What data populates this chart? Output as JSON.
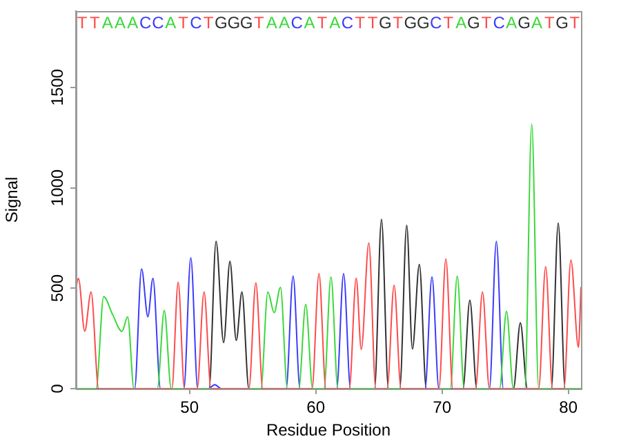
{
  "chart_data": {
    "type": "line",
    "xlabel": "Residue Position",
    "ylabel": "Signal",
    "xlim": [
      41,
      81
    ],
    "xticks": [
      50,
      60,
      70,
      80
    ],
    "ylim": [
      0,
      1880
    ],
    "yticks": [
      0,
      500,
      1000,
      1500
    ],
    "marker": "none",
    "legend": false,
    "series": [
      {
        "color": "#ff4a4a",
        "x": [
          41,
          41.2,
          41.7,
          42.2,
          42.8,
          48.6,
          49.1,
          49.6,
          50.6,
          51.15,
          51.7,
          54.7,
          55.25,
          55.8,
          59.7,
          60.25,
          60.8,
          62.65,
          63.2,
          63.6,
          64.2,
          64.75,
          65.65,
          66.2,
          66.75,
          69.75,
          70.3,
          70.85,
          72.65,
          73.2,
          73.75,
          77.65,
          78.2,
          78.75,
          79.65,
          80.2,
          80.8,
          81
        ],
        "values": [
          500,
          549,
          286,
          481,
          0,
          0,
          530,
          0,
          0,
          481,
          0,
          0,
          527,
          0,
          0,
          573,
          0,
          0,
          550,
          195,
          726,
          0,
          0,
          515,
          0,
          0,
          646,
          0,
          0,
          481,
          0,
          0,
          607,
          0,
          0,
          641,
          206,
          506
        ]
      },
      {
        "color": "#3ad83a",
        "x": [
          41,
          42.6,
          43.2,
          43.9,
          44.65,
          45.1,
          45.6,
          47.45,
          48,
          48.55,
          55.65,
          56.2,
          56.7,
          57.2,
          57.75,
          58.65,
          59.2,
          59.75,
          60.65,
          61.2,
          61.75,
          70.65,
          71.2,
          71.75,
          74.55,
          75.1,
          75.65,
          76.55,
          77.1,
          77.65,
          81
        ],
        "values": [
          0,
          0,
          458,
          370,
          285,
          358,
          0,
          0,
          389,
          0,
          0,
          481,
          378,
          504,
          0,
          0,
          419,
          0,
          0,
          557,
          0,
          0,
          561,
          0,
          0,
          385,
          0,
          0,
          1317,
          0,
          0
        ]
      },
      {
        "color": "#3a3aff",
        "x": [
          41,
          45.65,
          46.2,
          46.7,
          47.1,
          47.7,
          49.55,
          50.1,
          50.65,
          51.5,
          52,
          52.5,
          57.65,
          58.2,
          58.75,
          61.65,
          62.2,
          62.75,
          68.65,
          69.2,
          69.75,
          73.75,
          74.3,
          74.85,
          81
        ],
        "values": [
          0,
          0,
          596,
          358,
          549,
          0,
          0,
          652,
          0,
          0,
          20,
          0,
          0,
          561,
          0,
          0,
          573,
          0,
          0,
          557,
          0,
          0,
          733,
          0,
          0
        ]
      },
      {
        "color": "#303030",
        "x": [
          41,
          51.55,
          52.1,
          52.7,
          53.2,
          53.7,
          54.15,
          54.7,
          64.65,
          65.2,
          65.75,
          66.65,
          67.2,
          67.65,
          68.2,
          68.75,
          71.65,
          72.2,
          72.75,
          75.65,
          76.2,
          76.75,
          78.65,
          79.2,
          79.75,
          81
        ],
        "values": [
          0,
          0,
          733,
          229,
          634,
          240,
          481,
          0,
          0,
          843,
          0,
          0,
          813,
          197,
          618,
          0,
          0,
          440,
          0,
          0,
          328,
          0,
          0,
          824,
          0,
          0
        ]
      }
    ],
    "annotations": [
      "TTAAACCATCTGGGTAACATACTTGTGGCTAGTCAGATGT"
    ]
  }
}
